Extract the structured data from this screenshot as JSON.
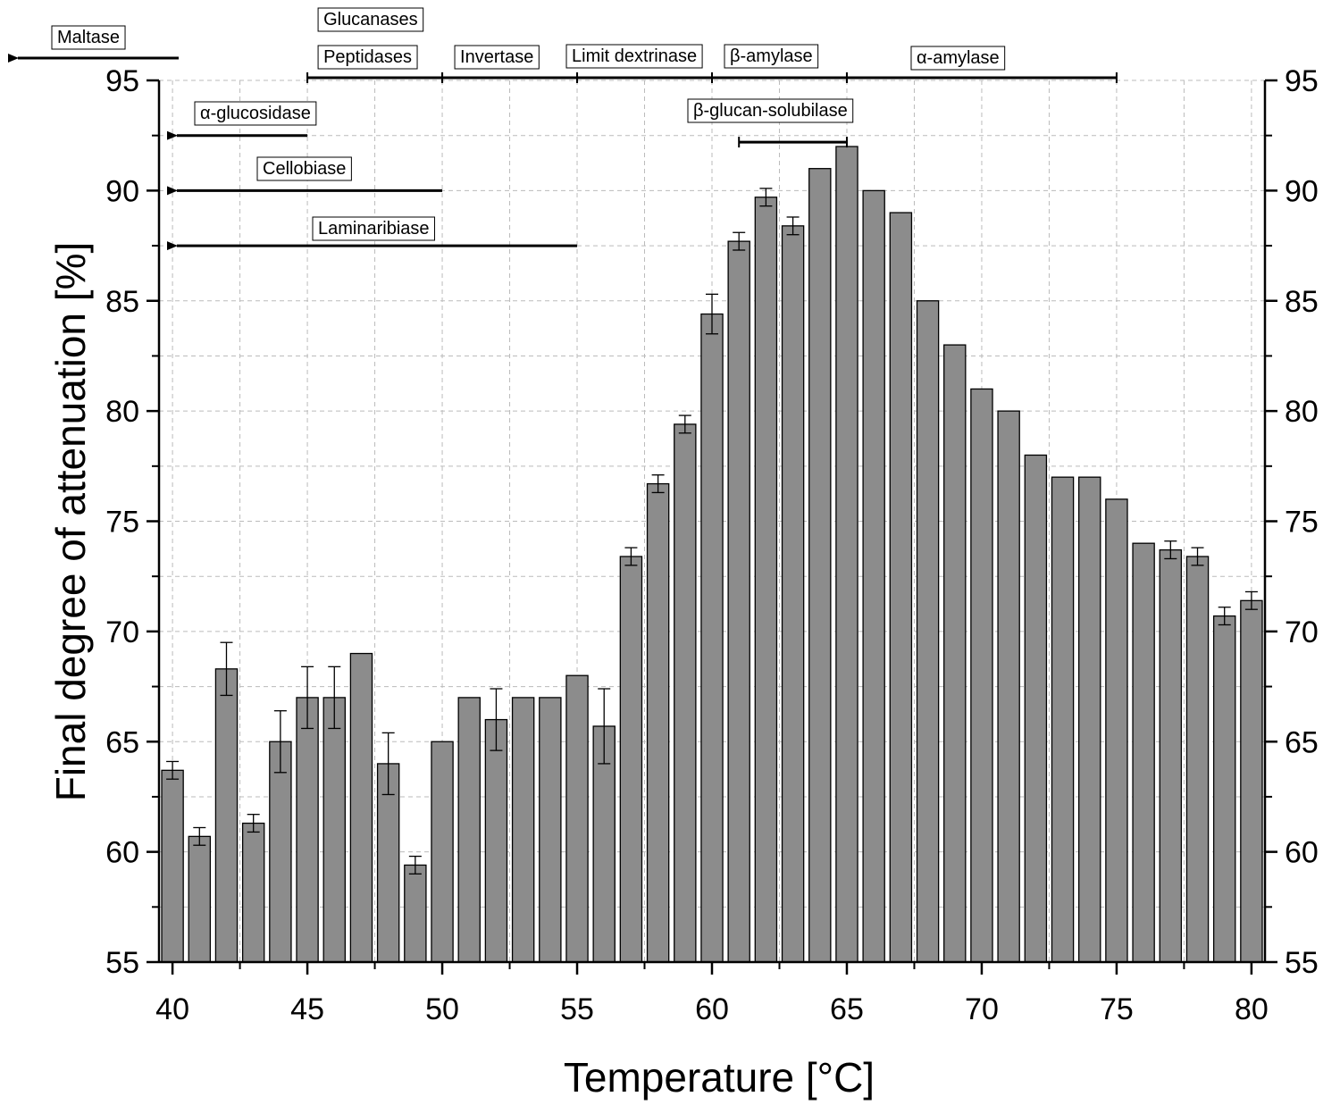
{
  "chart_data": {
    "type": "bar",
    "xlabel": "Temperature [°C]",
    "ylabel": "Final degree of attenuation [%]",
    "xlim": [
      39.5,
      80.5
    ],
    "ylim": [
      55,
      95
    ],
    "grid": true,
    "x_ticks": [
      "40",
      "45",
      "50",
      "55",
      "60",
      "65",
      "70",
      "75",
      "80"
    ],
    "y_ticks": [
      "55",
      "60",
      "65",
      "70",
      "75",
      "80",
      "85",
      "90",
      "95"
    ],
    "bar_color": "#8c8c8c",
    "x": [
      40,
      41,
      42,
      43,
      44,
      45,
      46,
      47,
      48,
      49,
      50,
      51,
      52,
      53,
      54,
      55,
      56,
      57,
      58,
      59,
      60,
      61,
      62,
      63,
      64,
      65,
      66,
      67,
      68,
      69,
      70,
      71,
      72,
      73,
      74,
      75,
      76,
      77,
      78,
      79,
      80
    ],
    "values": [
      63.7,
      60.7,
      68.3,
      61.3,
      65.0,
      67.0,
      67.0,
      69.0,
      64.0,
      59.4,
      65.0,
      67.0,
      66.0,
      67.0,
      67.0,
      68.0,
      65.7,
      73.4,
      76.7,
      79.4,
      84.4,
      87.7,
      89.7,
      88.4,
      91.0,
      92.0,
      90.0,
      89.0,
      85.0,
      83.0,
      81.0,
      80.0,
      78.0,
      77.0,
      77.0,
      76.0,
      74.0,
      73.7,
      73.4,
      70.7,
      71.4
    ],
    "errors": [
      0.4,
      0.4,
      1.2,
      0.4,
      1.4,
      1.4,
      1.4,
      0,
      1.4,
      0.4,
      0,
      0,
      1.4,
      0,
      0,
      0,
      1.7,
      0.4,
      0.4,
      0.4,
      0.9,
      0.4,
      0.4,
      0.4,
      0,
      0,
      0,
      0,
      0,
      0,
      0,
      0,
      0,
      0,
      0,
      0,
      0,
      0.4,
      0.4,
      0.4,
      0.4
    ],
    "annotations": [
      {
        "label": "Maltase",
        "from": 39.5,
        "to": 39.5,
        "level": 96.0,
        "style": "arrow-left",
        "arrow_from": 39.5
      },
      {
        "label": "Glucanases",
        "from": 45,
        "to": 50,
        "level": 95.0,
        "style": "range"
      },
      {
        "label": "Peptidases",
        "from": 45,
        "to": 50,
        "level": 95.0,
        "style": "range"
      },
      {
        "label": "Invertase",
        "from": 50,
        "to": 55,
        "level": 95.0,
        "style": "range"
      },
      {
        "label": "Limit dextrinase",
        "from": 55,
        "to": 60,
        "level": 95.0,
        "style": "range"
      },
      {
        "label": "β-amylase",
        "from": 60,
        "to": 65,
        "level": 95.0,
        "style": "range"
      },
      {
        "label": "α-amylase",
        "from": 65,
        "to": 75,
        "level": 95.0,
        "style": "range"
      },
      {
        "label": "α-glucosidase",
        "from": 39.5,
        "to": 45,
        "level": 92.5,
        "style": "arrow-left"
      },
      {
        "label": "β-glucan-solubilase",
        "from": 61,
        "to": 65,
        "level": 92.2,
        "style": "range"
      },
      {
        "label": "Cellobiase",
        "from": 39.5,
        "to": 50,
        "level": 90.0,
        "style": "arrow-left"
      },
      {
        "label": "Laminaribiase",
        "from": 39.5,
        "to": 55,
        "level": 87.5,
        "style": "arrow-left"
      }
    ]
  }
}
